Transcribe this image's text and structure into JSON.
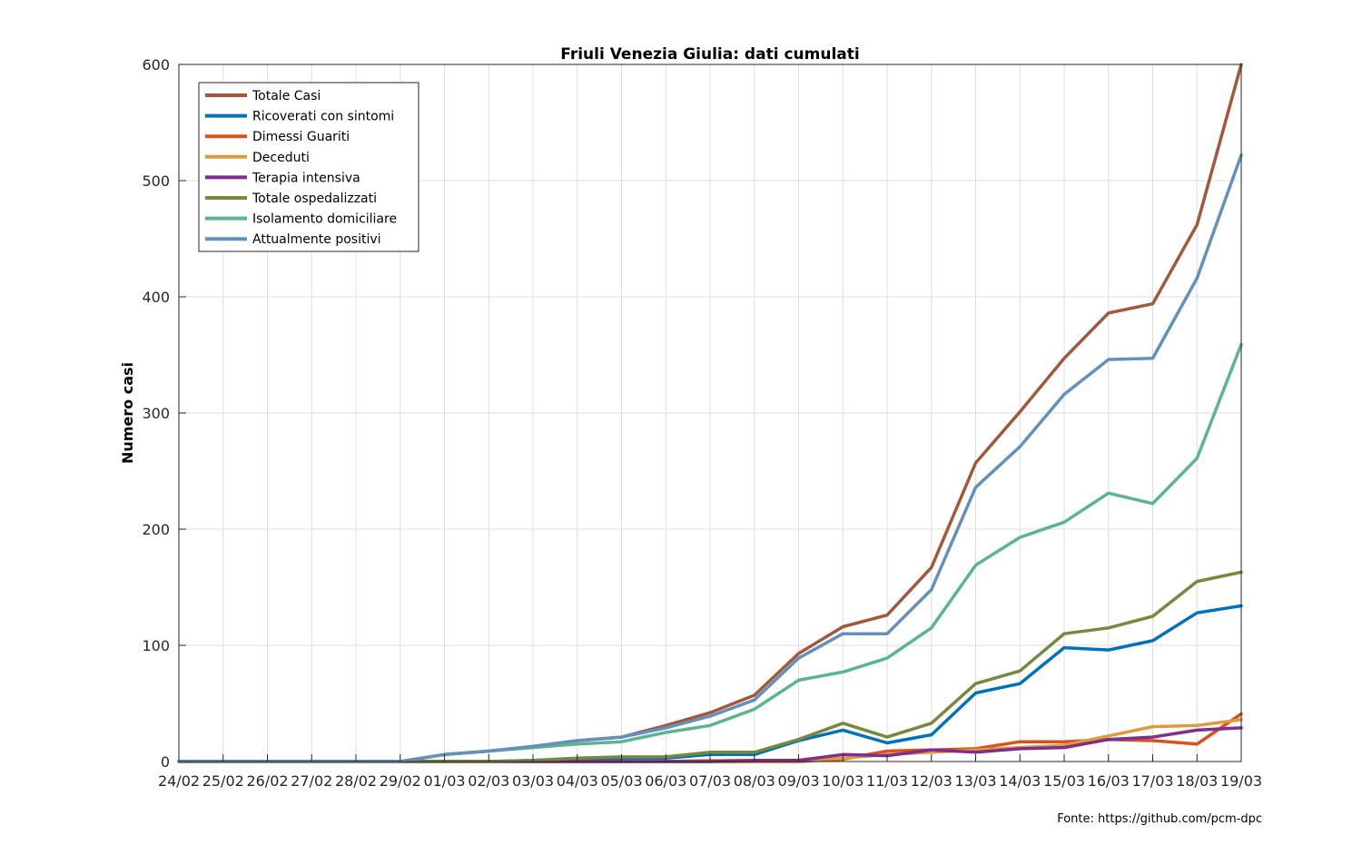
{
  "chart_data": {
    "type": "line",
    "title": "Friuli Venezia Giulia: dati cumulati",
    "xlabel": "",
    "ylabel": "Numero casi",
    "ylim": [
      0,
      600
    ],
    "yticks": [
      "0",
      "100",
      "200",
      "300",
      "400",
      "500",
      "600"
    ],
    "grid": true,
    "legend_position": "top-left",
    "categories": [
      "24/02",
      "25/02",
      "26/02",
      "27/02",
      "28/02",
      "29/02",
      "01/03",
      "02/03",
      "03/03",
      "04/03",
      "05/03",
      "06/03",
      "07/03",
      "08/03",
      "09/03",
      "10/03",
      "11/03",
      "12/03",
      "13/03",
      "14/03",
      "15/03",
      "16/03",
      "17/03",
      "18/03",
      "19/03"
    ],
    "series": [
      {
        "name": "Totale Casi",
        "color": "#A2583A",
        "values": [
          0,
          0,
          0,
          0,
          0,
          0,
          6,
          9,
          13,
          18,
          21,
          31,
          42,
          57,
          93,
          116,
          126,
          167,
          257,
          301,
          347,
          386,
          394,
          462,
          600
        ]
      },
      {
        "name": "Ricoverati con sintomi",
        "color": "#0072BD",
        "values": [
          0,
          0,
          0,
          0,
          0,
          0,
          0,
          0,
          1,
          2,
          3,
          3,
          6,
          6,
          18,
          27,
          16,
          23,
          59,
          67,
          98,
          96,
          104,
          128,
          134
        ]
      },
      {
        "name": "Dimessi Guariti",
        "color": "#D95319",
        "values": [
          0,
          0,
          0,
          0,
          0,
          0,
          0,
          0,
          0,
          0,
          0,
          0,
          0,
          0,
          0,
          2,
          9,
          10,
          11,
          17,
          17,
          19,
          18,
          15,
          41
        ]
      },
      {
        "name": "Deceduti",
        "color": "#E09A3E",
        "values": [
          0,
          0,
          0,
          0,
          0,
          0,
          0,
          0,
          0,
          0,
          0,
          0,
          1,
          1,
          1,
          3,
          6,
          8,
          10,
          12,
          14,
          22,
          30,
          31,
          36
        ]
      },
      {
        "name": "Terapia intensiva",
        "color": "#7E2F8E",
        "values": [
          0,
          0,
          0,
          0,
          0,
          0,
          0,
          0,
          0,
          0,
          0,
          0,
          0,
          1,
          1,
          6,
          5,
          10,
          8,
          11,
          12,
          19,
          21,
          27,
          29
        ]
      },
      {
        "name": "Totale ospedalizzati",
        "color": "#77883F",
        "values": [
          0,
          0,
          0,
          0,
          0,
          0,
          0,
          0,
          1,
          3,
          4,
          4,
          8,
          8,
          19,
          33,
          21,
          33,
          67,
          78,
          110,
          115,
          125,
          155,
          163
        ]
      },
      {
        "name": "Isolamento domiciliare",
        "color": "#5BB58F",
        "values": [
          0,
          0,
          0,
          0,
          0,
          0,
          6,
          9,
          12,
          15,
          17,
          25,
          31,
          45,
          70,
          77,
          89,
          115,
          169,
          193,
          206,
          231,
          222,
          261,
          359
        ]
      },
      {
        "name": "Attualmente positivi",
        "color": "#6490BE",
        "values": [
          0,
          0,
          0,
          0,
          0,
          0,
          6,
          9,
          13,
          18,
          21,
          29,
          39,
          53,
          89,
          110,
          110,
          148,
          236,
          271,
          316,
          346,
          347,
          416,
          522
        ]
      }
    ],
    "source": "Fonte: https://github.com/pcm-dpc"
  }
}
